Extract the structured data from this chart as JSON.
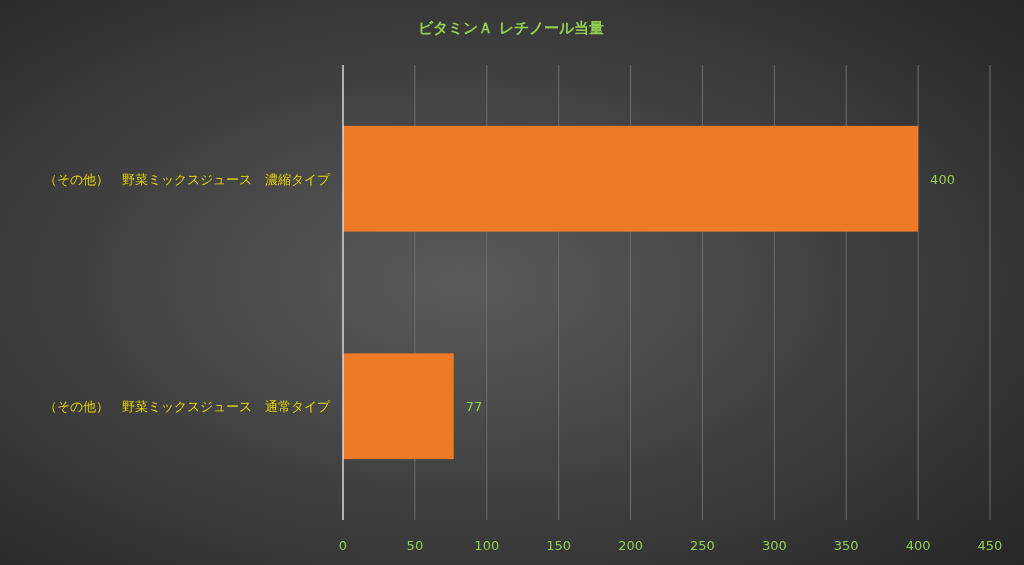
{
  "chart_data": {
    "type": "bar",
    "orientation": "horizontal",
    "title": "ビタミンＡ レチノール当量",
    "categories": [
      "（その他）　野菜ミックスジュース　濃縮タイプ",
      "（その他）　野菜ミックスジュース　通常タイプ"
    ],
    "values": [
      400,
      77
    ],
    "color": "#ef7a26",
    "xlim": [
      0,
      450
    ],
    "xticks": [
      0,
      50,
      100,
      150,
      200,
      250,
      300,
      350,
      400,
      450
    ],
    "grid": "x",
    "data_labels": true
  }
}
